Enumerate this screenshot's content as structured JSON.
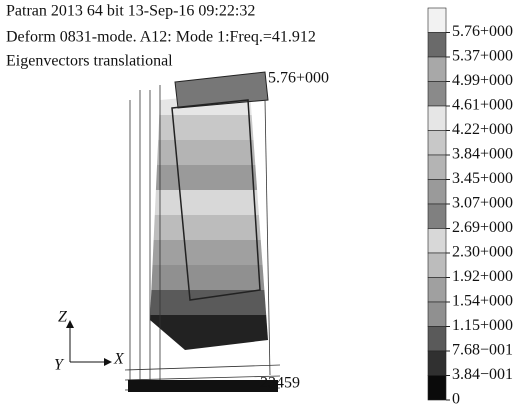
{
  "header": {
    "lines": [
      "Patran 2013 64 bit 13-Sep-16 09:22:32",
      "Deform 0831-mode. A12: Mode 1:Freq.=41.912",
      "Eigenvectors translational"
    ]
  },
  "annotations": {
    "max_label": "5.76+000",
    "node_label": "23459"
  },
  "axes": {
    "z": "Z",
    "y": "Y",
    "x": "X"
  },
  "legend": {
    "labels": [
      "5.76+000",
      "5.37+000",
      "4.99+000",
      "4.61+000",
      "4.22+000",
      "3.84+000",
      "3.45+000",
      "3.07+000",
      "2.69+000",
      "2.30+000",
      "1.92+000",
      "1.54+000",
      "1.15+000",
      "7.68−001",
      "3.84−001",
      "0"
    ],
    "colors": [
      "#f2f2f2",
      "#6a6a6a",
      "#a8a8a8",
      "#8a8a8a",
      "#e6e6e6",
      "#c8c8c8",
      "#b4b4b4",
      "#9a9a9a",
      "#808080",
      "#d8d8d8",
      "#bcbcbc",
      "#a0a0a0",
      "#909090",
      "#5a5a5a",
      "#303030",
      "#0a0a0a"
    ]
  }
}
